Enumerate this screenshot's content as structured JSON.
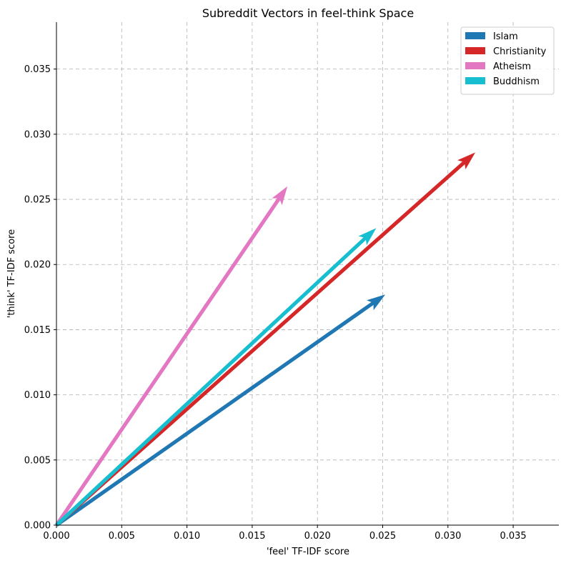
{
  "chart_data": {
    "type": "quiver",
    "title": "Subreddit Vectors in feel-think Space",
    "xlabel": "'feel' TF-IDF score",
    "ylabel": "'think' TF-IDF score",
    "xlim": [
      0,
      0.0385
    ],
    "ylim": [
      0,
      0.0386
    ],
    "xticks": [
      "0.000",
      "0.005",
      "0.010",
      "0.015",
      "0.020",
      "0.025",
      "0.030",
      "0.035"
    ],
    "yticks": [
      "0.000",
      "0.005",
      "0.010",
      "0.015",
      "0.020",
      "0.025",
      "0.030",
      "0.035"
    ],
    "grid": true,
    "legend_position": "top-right",
    "series": [
      {
        "name": "Islam",
        "color": "#1f77b4",
        "x0": 0,
        "y0": 0,
        "x": 0.0252,
        "y": 0.0177
      },
      {
        "name": "Christianity",
        "color": "#d62728",
        "x0": 0,
        "y0": 0,
        "x": 0.0321,
        "y": 0.0286
      },
      {
        "name": "Atheism",
        "color": "#e377c2",
        "x0": 0,
        "y0": 0,
        "x": 0.0177,
        "y": 0.026
      },
      {
        "name": "Buddhism",
        "color": "#17becf",
        "x0": 0,
        "y0": 0,
        "x": 0.0245,
        "y": 0.0228
      }
    ]
  }
}
